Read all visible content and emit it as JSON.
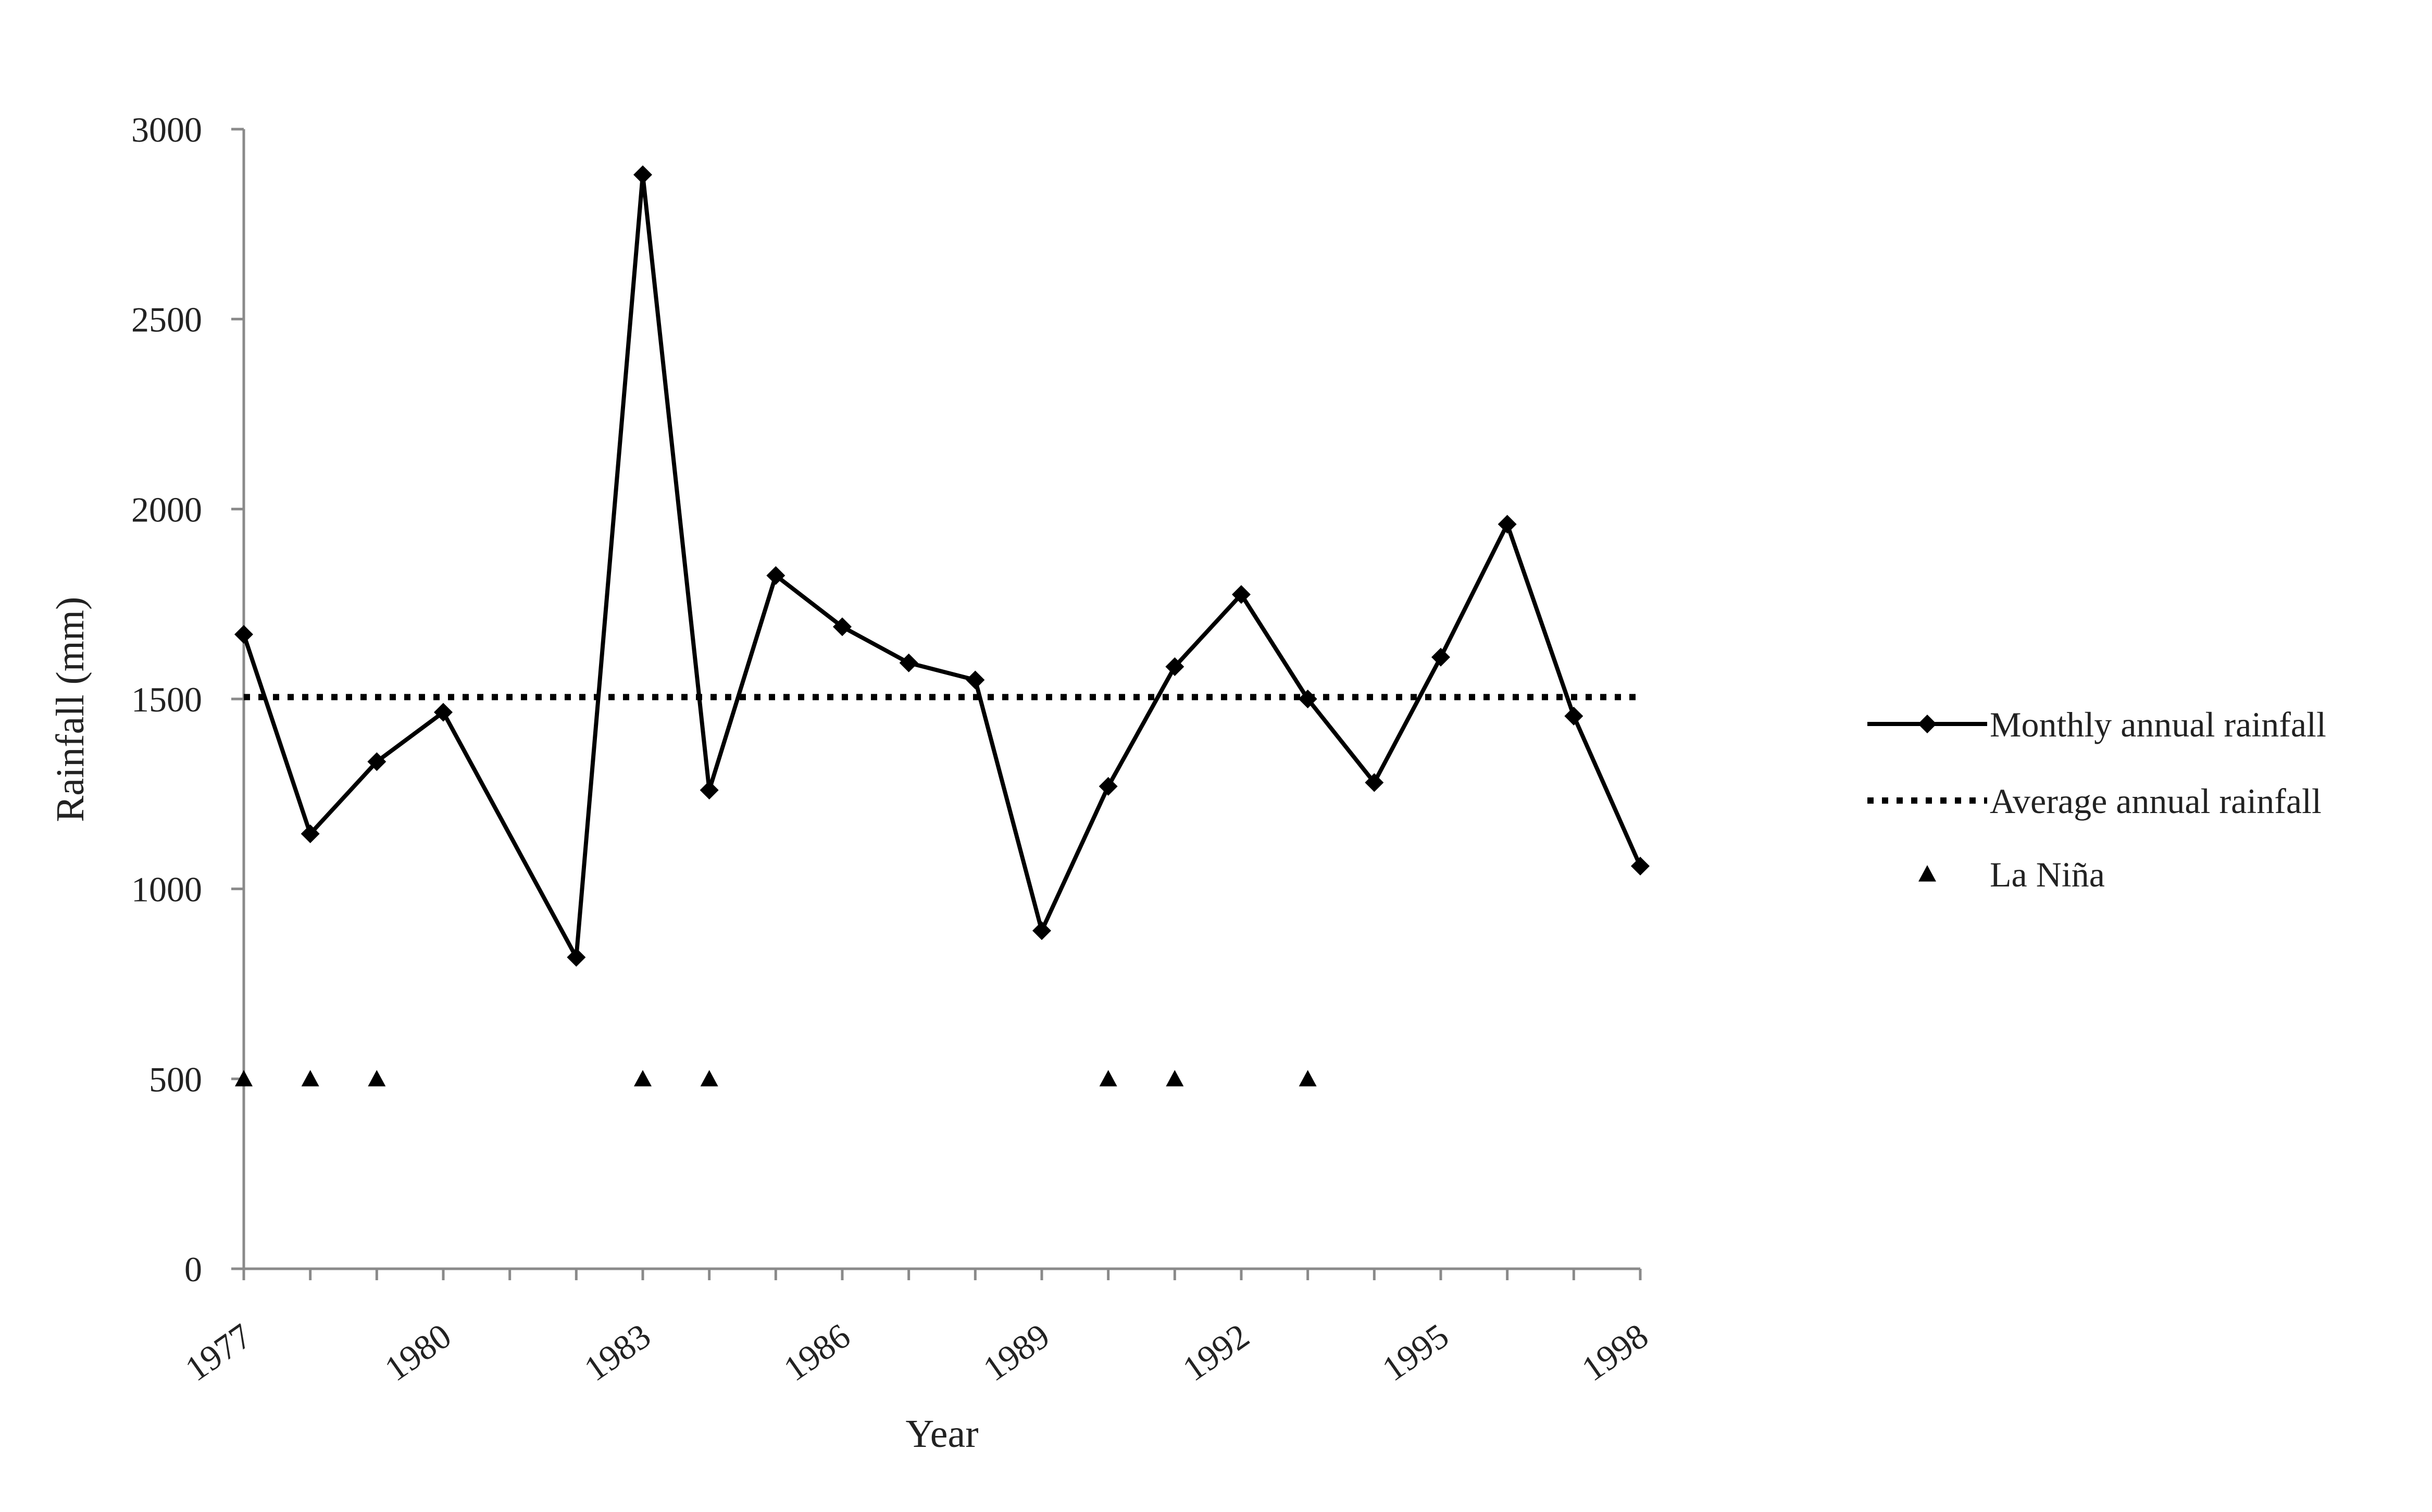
{
  "chart_data": {
    "type": "line",
    "xlabel": "Year",
    "ylabel": "Rainfall  (mm)",
    "xlim": [
      1977,
      1998
    ],
    "ylim": [
      0,
      3000
    ],
    "yticks": [
      0,
      500,
      1000,
      1500,
      2000,
      2500,
      3000
    ],
    "xticks": [
      1977,
      1980,
      1983,
      1986,
      1989,
      1992,
      1995,
      1998
    ],
    "grid": false,
    "legend_position": "right",
    "series": [
      {
        "name": "Monthly annual rainfall",
        "style": "solid-diamond",
        "x": [
          1977,
          1978,
          1979,
          1980,
          1982,
          1983,
          1984,
          1985,
          1986,
          1987,
          1988,
          1989,
          1990,
          1991,
          1992,
          1993,
          1994,
          1995,
          1996,
          1997,
          1998
        ],
        "y": [
          1670,
          1145,
          1335,
          1465,
          820,
          2880,
          1260,
          1825,
          1690,
          1595,
          1550,
          890,
          1270,
          1585,
          1775,
          1500,
          1280,
          1610,
          1960,
          1455,
          1060
        ]
      },
      {
        "name": "Average annual rainfall",
        "style": "dotted",
        "x": [
          1977,
          1998
        ],
        "y": [
          1505,
          1505
        ]
      },
      {
        "name": "La Niña",
        "style": "triangle-markers",
        "x": [
          1977,
          1978,
          1979,
          1983,
          1984,
          1990,
          1991,
          1993
        ],
        "y": [
          500,
          500,
          500,
          500,
          500,
          500,
          500,
          500
        ]
      }
    ]
  }
}
